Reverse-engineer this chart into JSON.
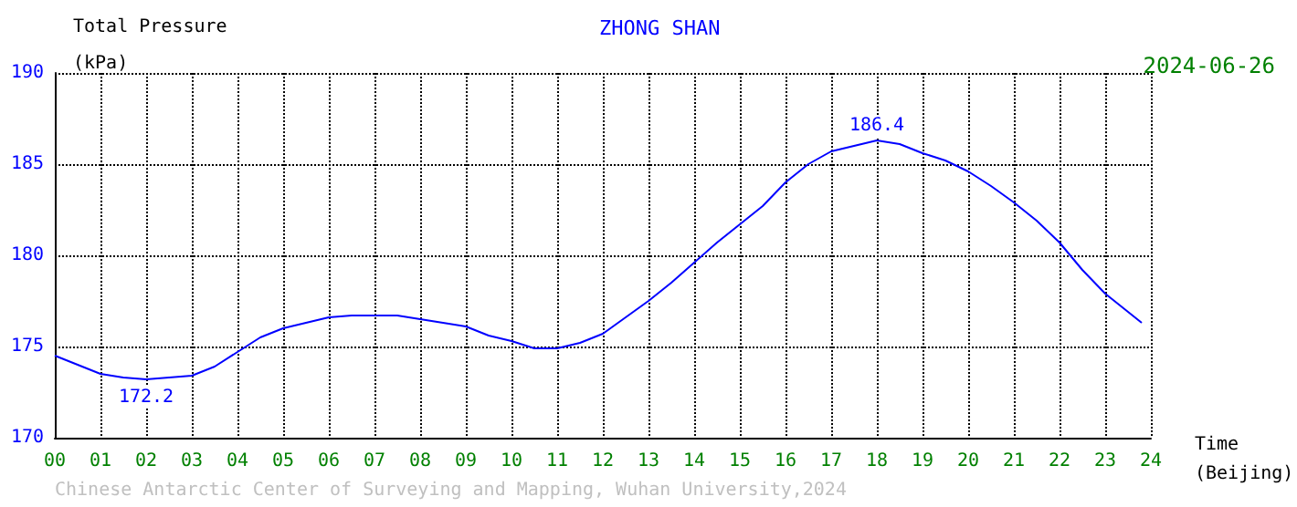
{
  "chart_data": {
    "type": "line",
    "title": "ZHONG SHAN",
    "subtitle": "2024-06-26",
    "ylabel": "Total Pressure\n(kPa)",
    "xlabel": "Time\n(Beijing)",
    "x": [
      0,
      0.5,
      1,
      1.5,
      2,
      2.5,
      3,
      3.5,
      4,
      4.5,
      5,
      5.5,
      6,
      6.5,
      7,
      7.5,
      8,
      8.5,
      9,
      9.5,
      10,
      10.5,
      11,
      11.5,
      12,
      12.5,
      13,
      13.5,
      14,
      14.5,
      15,
      15.5,
      16,
      16.5,
      17,
      17.5,
      18,
      18.5,
      19,
      19.5,
      20,
      20.5,
      21,
      21.5,
      22,
      22.5,
      23,
      23.5,
      23.8
    ],
    "series": [
      {
        "color": "#0000ff",
        "values": [
          174.5,
          174.0,
          173.5,
          173.3,
          173.2,
          173.3,
          173.4,
          173.9,
          174.7,
          175.5,
          176.0,
          176.3,
          176.6,
          176.7,
          176.7,
          176.7,
          176.5,
          176.3,
          176.1,
          175.6,
          175.3,
          174.9,
          174.9,
          175.2,
          175.7,
          176.6,
          177.5,
          178.5,
          179.6,
          180.7,
          181.7,
          182.7,
          184.0,
          185.0,
          185.7,
          186.0,
          186.3,
          186.1,
          185.6,
          185.2,
          184.6,
          183.8,
          182.9,
          181.9,
          180.7,
          179.2,
          177.9,
          176.9,
          176.3
        ]
      }
    ],
    "xlim": [
      0,
      24
    ],
    "xticks": [
      {
        "value": 0,
        "label": "00"
      },
      {
        "value": 1,
        "label": "01"
      },
      {
        "value": 2,
        "label": "02"
      },
      {
        "value": 3,
        "label": "03"
      },
      {
        "value": 4,
        "label": "04"
      },
      {
        "value": 5,
        "label": "05"
      },
      {
        "value": 6,
        "label": "06"
      },
      {
        "value": 7,
        "label": "07"
      },
      {
        "value": 8,
        "label": "08"
      },
      {
        "value": 9,
        "label": "09"
      },
      10,
      11,
      12,
      13,
      14,
      15,
      16,
      17,
      18,
      19,
      20,
      21,
      22,
      23,
      24
    ],
    "ylim": [
      170,
      190
    ],
    "yticks": [
      170,
      175,
      180,
      185,
      190
    ],
    "grid": true,
    "marker": "none",
    "line_style": "solid",
    "annotations": [
      {
        "text": "186.4",
        "x": 18,
        "y": 186.3
      },
      {
        "text": "172.2",
        "x": 2,
        "y": 173.2
      },
      "Chinese Antarctic Center of Surveying and Mapping, Wuhan University,2024"
    ]
  }
}
